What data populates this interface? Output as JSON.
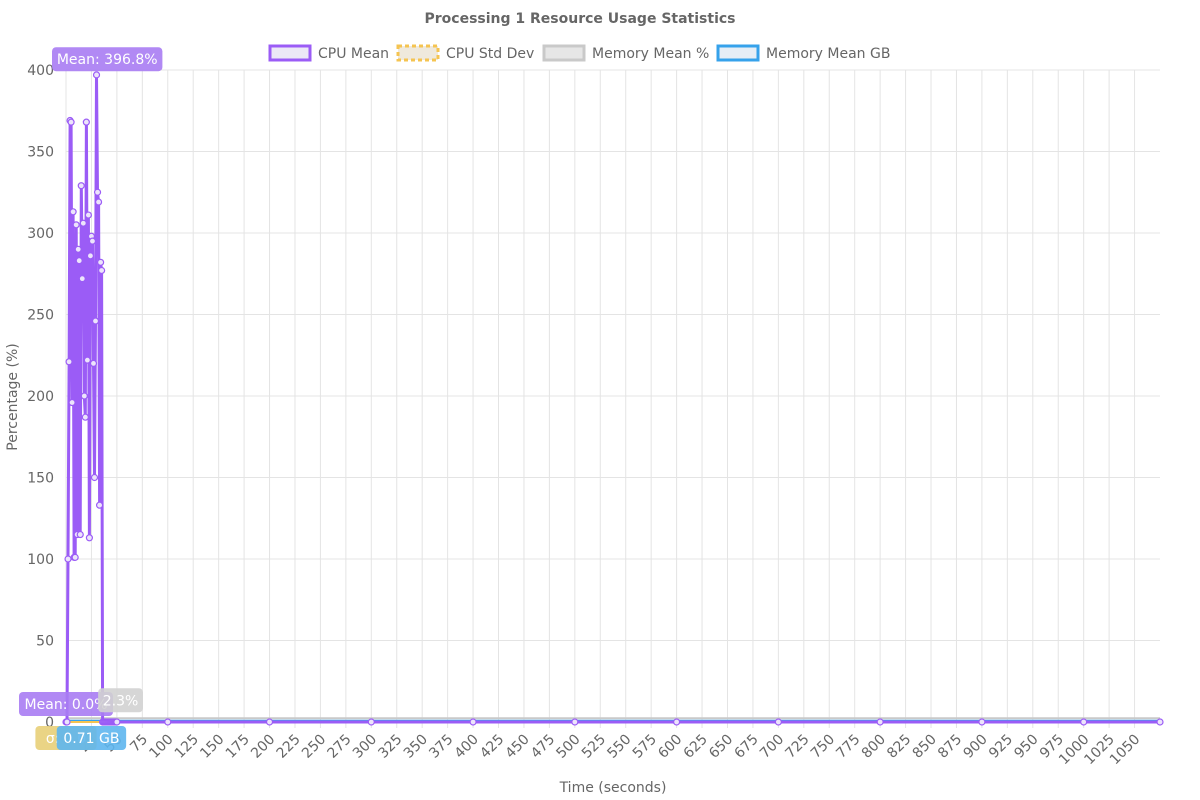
{
  "chart_data": {
    "type": "line",
    "title": "Processing 1 Resource Usage Statistics",
    "xlabel": "Time (seconds)",
    "ylabel": "Percentage (%)",
    "xlim": [
      0,
      1075
    ],
    "ylim": [
      0,
      400
    ],
    "x_ticks": [
      0,
      25,
      50,
      75,
      100,
      125,
      150,
      175,
      200,
      225,
      250,
      275,
      300,
      325,
      350,
      375,
      400,
      425,
      450,
      475,
      500,
      525,
      550,
      575,
      600,
      625,
      650,
      675,
      700,
      725,
      750,
      775,
      800,
      825,
      850,
      875,
      900,
      925,
      950,
      975,
      1000,
      1025,
      1050
    ],
    "y_ticks": [
      0,
      50,
      100,
      150,
      200,
      250,
      300,
      350,
      400
    ],
    "legend_position": "top-center",
    "grid": true,
    "series": [
      {
        "name": "CPU Mean",
        "color": "#9b5cf6",
        "x": [
          0,
          1,
          2,
          3,
          4,
          5,
          6,
          7,
          8,
          9,
          10,
          11,
          12,
          13,
          14,
          15,
          16,
          17,
          18,
          19,
          20,
          21,
          22,
          23,
          24,
          25,
          26,
          27,
          28,
          29,
          30,
          31,
          32,
          33,
          34,
          35,
          36,
          37,
          38,
          39,
          40,
          41,
          42,
          43,
          44,
          45,
          46,
          47,
          48,
          49,
          50,
          100,
          200,
          300,
          400,
          500,
          600,
          700,
          800,
          900,
          1000,
          1075
        ],
        "values": [
          0,
          0,
          100,
          221,
          369,
          368,
          196,
          313,
          101,
          101,
          305,
          115,
          290,
          283,
          115,
          329,
          272,
          306,
          200,
          187,
          368,
          222,
          311,
          113,
          286,
          298,
          295,
          220,
          150,
          246,
          397,
          325,
          319,
          133,
          282,
          277,
          0,
          0,
          0,
          0,
          0,
          0,
          0,
          0,
          0,
          0,
          0,
          0,
          0,
          0,
          0,
          0,
          0,
          0,
          0,
          0,
          0,
          0,
          0,
          0,
          0,
          0
        ]
      },
      {
        "name": "CPU Std Dev",
        "color": "#f5c451",
        "x": [
          0,
          40,
          80,
          200,
          400,
          600,
          800,
          1000,
          1075
        ],
        "values": [
          0,
          0,
          0,
          0,
          0,
          0,
          0,
          0,
          0
        ]
      },
      {
        "name": "Memory Mean %",
        "color": "#c9c9c9",
        "x": [
          0,
          40,
          80,
          200,
          400,
          600,
          800,
          1000,
          1075
        ],
        "values": [
          2.3,
          2.3,
          2.3,
          2.3,
          2.3,
          2.3,
          2.3,
          2.3,
          2.3
        ]
      },
      {
        "name": "Memory Mean GB",
        "color": "#36a2eb",
        "x": [
          0,
          40,
          80,
          200,
          400,
          600,
          800,
          1000,
          1075
        ],
        "values": [
          0.71,
          0.71,
          0.71,
          0.71,
          0.71,
          0.71,
          0.71,
          0.71,
          0.71
        ]
      }
    ],
    "annotations": [
      {
        "label": "Mean: 396.8%",
        "series": "CPU Mean",
        "x": 30,
        "y": 396.8,
        "anchor": "above",
        "color": "#a97cf3"
      },
      {
        "label": "Mean: 0.0%",
        "series": "CPU Mean",
        "x": 0,
        "y": 0,
        "anchor": "low",
        "color": "#a97cf3"
      },
      {
        "label": "2.3%",
        "series": "Memory Mean %",
        "x": 30,
        "y": 2.3,
        "anchor": "low",
        "color": "#d2d2d2"
      },
      {
        "label": "σ: 0.0",
        "series": "CPU Std Dev",
        "x": 0,
        "y": 0,
        "anchor": "below",
        "color": "#e8cf78"
      },
      {
        "label": "0.71 GB",
        "series": "Memory Mean GB",
        "x": 25,
        "y": 0,
        "anchor": "below",
        "color": "#5eb6ee"
      }
    ]
  }
}
